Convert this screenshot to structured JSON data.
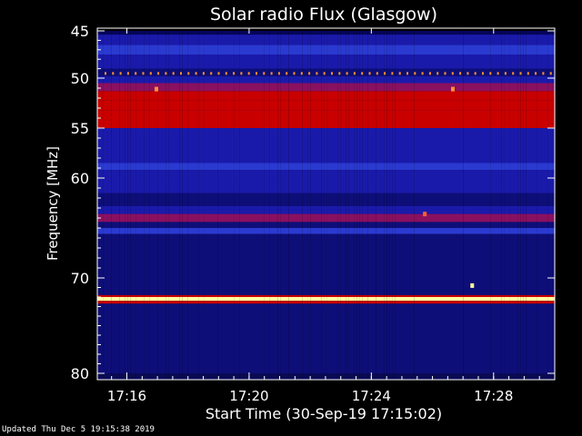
{
  "footer": {
    "updated_text": "Updated Thu Dec  5 19:15:38 2019"
  },
  "chart_data": {
    "type": "heatmap",
    "title": "Solar radio Flux (Glasgow)",
    "xlabel": "Start Time (30-Sep-19 17:15:02)",
    "ylabel": "Frequency [MHz]",
    "x_unit": "UT time, 30-Sep-19",
    "xlim": [
      "17:15:02",
      "17:30:00"
    ],
    "ylim": [
      45,
      80
    ],
    "y_inverted": true,
    "x_ticks": [
      "17:16",
      "17:20",
      "17:24",
      "17:28"
    ],
    "y_ticks": [
      45,
      50,
      55,
      60,
      70,
      80
    ],
    "colors": {
      "background": "#000000",
      "base": "#1a1aaa",
      "low": "#05055a",
      "high": "#c80000",
      "peak": "#ffffa0"
    },
    "bands": [
      {
        "freq": [
          45.0,
          45.4
        ],
        "level": "low"
      },
      {
        "freq": [
          45.4,
          46.5
        ],
        "level": "blue"
      },
      {
        "freq": [
          46.5,
          47.5
        ],
        "level": "mid-blue"
      },
      {
        "freq": [
          47.5,
          49.0
        ],
        "level": "blue"
      },
      {
        "freq": [
          49.0,
          49.8
        ],
        "level": "dark-blue"
      },
      {
        "freq": [
          49.8,
          50.5
        ],
        "level": "blue"
      },
      {
        "freq": [
          50.5,
          51.3
        ],
        "level": "magenta"
      },
      {
        "freq": [
          51.3,
          52.2
        ],
        "level": "red"
      },
      {
        "freq": [
          52.2,
          53.2
        ],
        "level": "red"
      },
      {
        "freq": [
          53.2,
          55.0
        ],
        "level": "red"
      },
      {
        "freq": [
          55.0,
          56.0
        ],
        "level": "blue"
      },
      {
        "freq": [
          56.0,
          58.5
        ],
        "level": "blue"
      },
      {
        "freq": [
          58.5,
          59.2
        ],
        "level": "mid-blue"
      },
      {
        "freq": [
          59.2,
          61.5
        ],
        "level": "blue"
      },
      {
        "freq": [
          61.5,
          62.8
        ],
        "level": "dark-blue"
      },
      {
        "freq": [
          62.8,
          63.6
        ],
        "level": "blue"
      },
      {
        "freq": [
          63.6,
          64.4
        ],
        "level": "magenta"
      },
      {
        "freq": [
          64.4,
          65.0
        ],
        "level": "dark-blue"
      },
      {
        "freq": [
          65.0,
          65.6
        ],
        "level": "mid-blue"
      },
      {
        "freq": [
          65.6,
          71.8
        ],
        "level": "dark-blue"
      },
      {
        "freq": [
          71.8,
          72.0
        ],
        "level": "red"
      },
      {
        "freq": [
          72.0,
          72.4
        ],
        "level": "peak"
      },
      {
        "freq": [
          72.4,
          72.7
        ],
        "level": "red"
      },
      {
        "freq": [
          72.7,
          80.0
        ],
        "level": "dark-blue"
      }
    ],
    "features": [
      {
        "type": "dotted-line",
        "freq": 49.5,
        "color": "#ff9030"
      },
      {
        "type": "spot",
        "time": "17:16:58",
        "freq": 51.1,
        "color": "#ff9030"
      },
      {
        "type": "spot",
        "time": "17:26:40",
        "freq": 51.1,
        "color": "#ff9030"
      },
      {
        "type": "spot",
        "time": "17:25:45",
        "freq": 63.6,
        "color": "#ff6030"
      },
      {
        "type": "spot",
        "time": "17:27:18",
        "freq": 70.8,
        "color": "#ffffa0"
      }
    ]
  }
}
